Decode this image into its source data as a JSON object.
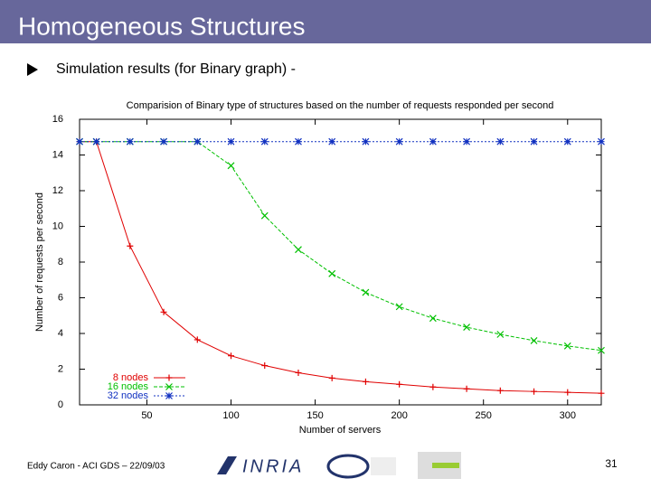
{
  "slide": {
    "title": "Homogeneous Structures",
    "bullet": "Simulation results (for Binary graph) -",
    "footer": "Eddy Caron - ACI GDS – 22/09/03",
    "page_number": "31",
    "logo_text": "INRIA"
  },
  "chart_data": {
    "type": "line",
    "title": "Comparision of Binary type of structures based on the number of requests responded per second",
    "x_label": "Number of servers",
    "y_label": "Number of requests per second",
    "x": [
      10,
      20,
      40,
      60,
      80,
      100,
      120,
      140,
      160,
      180,
      200,
      220,
      240,
      260,
      280,
      300,
      320
    ],
    "series": [
      {
        "name": "8 nodes",
        "color": "#e00000",
        "marker": "plus",
        "values": [
          14.75,
          14.75,
          8.9,
          5.2,
          3.65,
          2.75,
          2.2,
          1.8,
          1.5,
          1.3,
          1.15,
          1.0,
          0.9,
          0.8,
          0.75,
          0.7,
          0.65
        ]
      },
      {
        "name": "16 nodes",
        "color": "#00c000",
        "marker": "cross",
        "values": [
          14.75,
          14.75,
          14.75,
          14.75,
          14.75,
          13.4,
          10.6,
          8.7,
          7.35,
          6.3,
          5.5,
          4.85,
          4.35,
          3.95,
          3.6,
          3.3,
          3.05
        ]
      },
      {
        "name": "32 nodes",
        "color": "#1030c0",
        "marker": "star",
        "values": [
          14.75,
          14.75,
          14.75,
          14.75,
          14.75,
          14.75,
          14.75,
          14.75,
          14.75,
          14.75,
          14.75,
          14.75,
          14.75,
          14.75,
          14.75,
          14.75,
          14.75
        ]
      }
    ],
    "xlim": [
      10,
      320
    ],
    "xticks": [
      50,
      100,
      150,
      200,
      250,
      300
    ],
    "ylim": [
      0,
      16
    ],
    "yticks": [
      0,
      2,
      4,
      6,
      8,
      10,
      12,
      14,
      16
    ],
    "legend": "lower left",
    "grid": false
  }
}
